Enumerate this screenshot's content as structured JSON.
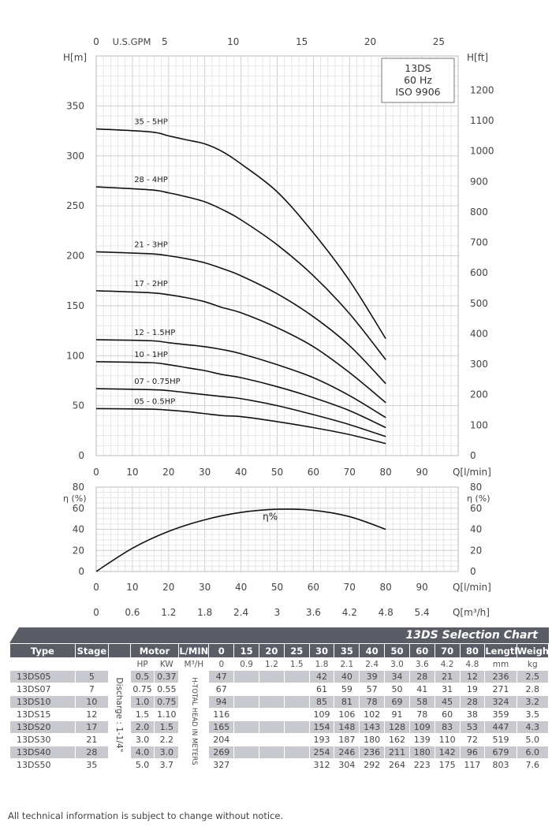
{
  "chart_data": [
    {
      "type": "line",
      "name": "head-curves",
      "model_box": [
        "13DS",
        "60 Hz",
        "ISO 9906"
      ],
      "ylabel_left": "H[m]",
      "ylabel_right": "H[ft]",
      "xlabel": "Q[l/min]",
      "xlabel_top": "U.S.GPM",
      "xlim": [
        0,
        100
      ],
      "ylim": [
        0,
        400
      ],
      "yticks_left": [
        0,
        50,
        100,
        150,
        200,
        250,
        300,
        350
      ],
      "yticks_right": [
        0,
        100,
        200,
        300,
        400,
        500,
        600,
        700,
        800,
        900,
        1000,
        1100,
        1200
      ],
      "xticks": [
        0,
        10,
        20,
        30,
        40,
        50,
        60,
        70,
        80,
        90
      ],
      "gpm_ticks": [
        0,
        5,
        10,
        15,
        20,
        25
      ],
      "grid": true,
      "x": [
        0,
        15,
        20,
        25,
        30,
        35,
        40,
        50,
        60,
        70,
        80
      ],
      "series": [
        {
          "name": "35 - 5HP",
          "values": [
            327,
            324,
            320,
            316,
            312,
            304,
            292,
            264,
            223,
            175,
            117
          ]
        },
        {
          "name": "28 - 4HP",
          "values": [
            269,
            266,
            263,
            259,
            254,
            246,
            236,
            211,
            180,
            142,
            96
          ]
        },
        {
          "name": "21 - 3HP",
          "values": [
            204,
            202,
            200,
            197,
            193,
            187,
            180,
            162,
            139,
            110,
            72
          ]
        },
        {
          "name": "17 - 2HP",
          "values": [
            165,
            163,
            161,
            158,
            154,
            148,
            143,
            128,
            109,
            83,
            53
          ]
        },
        {
          "name": "12 - 1.5HP",
          "values": [
            116,
            115,
            113,
            111,
            109,
            106,
            102,
            91,
            78,
            60,
            38
          ]
        },
        {
          "name": "10 - 1HP",
          "values": [
            94,
            93,
            91,
            88,
            85,
            81,
            78,
            69,
            58,
            45,
            28
          ]
        },
        {
          "name": "07 - 0.75HP",
          "values": [
            67,
            66,
            65,
            63,
            61,
            59,
            57,
            50,
            41,
            31,
            19
          ]
        },
        {
          "name": "05 - 0.5HP",
          "values": [
            47,
            46.5,
            45.5,
            44,
            42,
            40,
            39,
            34,
            28,
            21,
            12
          ]
        }
      ]
    },
    {
      "type": "line",
      "name": "efficiency-curve",
      "ylabel_left": "η (%)",
      "ylabel_right": "η (%)",
      "xlabel": "Q[l/min]",
      "xlabel2": "Q[m³/h]",
      "xlim": [
        0,
        100
      ],
      "ylim": [
        0,
        80
      ],
      "yticks": [
        0,
        20,
        40,
        60,
        80
      ],
      "xticks": [
        0,
        10,
        20,
        30,
        40,
        50,
        60,
        70,
        80,
        90
      ],
      "m3h_ticks": [
        "0",
        "0.6",
        "1.2",
        "1.8",
        "2.4",
        "3",
        "3.6",
        "4.2",
        "4.8",
        "5.4"
      ],
      "grid": true,
      "series": [
        {
          "name": "η%",
          "x": [
            0,
            10,
            20,
            30,
            40,
            50,
            60,
            70,
            80
          ],
          "values": [
            0,
            22,
            38,
            49,
            56,
            59,
            58,
            52,
            40
          ]
        }
      ]
    }
  ],
  "selection_chart": {
    "title": "13DS Selection Chart",
    "headers": {
      "type": "Type",
      "stage": "Stage",
      "motor": "Motor",
      "lmin": "L/MIN",
      "flows": [
        "0",
        "15",
        "20",
        "25",
        "30",
        "35",
        "40",
        "50",
        "60",
        "70",
        "80"
      ],
      "length": "Length",
      "weight": "Weight"
    },
    "units": {
      "hp": "HP",
      "kw": "KW",
      "m3h": "M³/H",
      "flows_m3h": [
        "0",
        "0.9",
        "1.2",
        "1.5",
        "1.8",
        "2.1",
        "2.4",
        "3.0",
        "3.6",
        "4.2",
        "4.8"
      ],
      "length": "mm",
      "weight": "kg"
    },
    "discharge_label": "Discharge : 1-1/4\"",
    "head_label": "H-TOTAL HEAD IN METERS",
    "rows": [
      {
        "type": "13DS05",
        "stage": "5",
        "hp": "0.5",
        "kw": "0.37",
        "heads": [
          "47",
          "",
          "",
          "",
          "42",
          "40",
          "39",
          "34",
          "28",
          "21",
          "12"
        ],
        "length": "236",
        "weight": "2.5"
      },
      {
        "type": "13DS07",
        "stage": "7",
        "hp": "0.75",
        "kw": "0.55",
        "heads": [
          "67",
          "",
          "",
          "",
          "61",
          "59",
          "57",
          "50",
          "41",
          "31",
          "19"
        ],
        "length": "271",
        "weight": "2.8"
      },
      {
        "type": "13DS10",
        "stage": "10",
        "hp": "1.0",
        "kw": "0.75",
        "heads": [
          "94",
          "",
          "",
          "",
          "85",
          "81",
          "78",
          "69",
          "58",
          "45",
          "28"
        ],
        "length": "324",
        "weight": "3.2"
      },
      {
        "type": "13DS15",
        "stage": "12",
        "hp": "1.5",
        "kw": "1.10",
        "heads": [
          "116",
          "",
          "",
          "",
          "109",
          "106",
          "102",
          "91",
          "78",
          "60",
          "38"
        ],
        "length": "359",
        "weight": "3.5"
      },
      {
        "type": "13DS20",
        "stage": "17",
        "hp": "2.0",
        "kw": "1.5",
        "heads": [
          "165",
          "",
          "",
          "",
          "154",
          "148",
          "143",
          "128",
          "109",
          "83",
          "53"
        ],
        "length": "447",
        "weight": "4.3"
      },
      {
        "type": "13DS30",
        "stage": "21",
        "hp": "3.0",
        "kw": "2.2",
        "heads": [
          "204",
          "",
          "",
          "",
          "193",
          "187",
          "180",
          "162",
          "139",
          "110",
          "72"
        ],
        "length": "519",
        "weight": "5.0"
      },
      {
        "type": "13DS40",
        "stage": "28",
        "hp": "4.0",
        "kw": "3.0",
        "heads": [
          "269",
          "",
          "",
          "",
          "254",
          "246",
          "236",
          "211",
          "180",
          "142",
          "96"
        ],
        "length": "679",
        "weight": "6.0"
      },
      {
        "type": "13DS50",
        "stage": "35",
        "hp": "5.0",
        "kw": "3.7",
        "heads": [
          "327",
          "",
          "",
          "",
          "312",
          "304",
          "292",
          "264",
          "223",
          "175",
          "117"
        ],
        "length": "803",
        "weight": "7.6"
      }
    ],
    "note": "All technical information is subject to change without notice.",
    "colors": {
      "header": "#5a5d66",
      "row_shade": "#c7c9cf"
    }
  }
}
